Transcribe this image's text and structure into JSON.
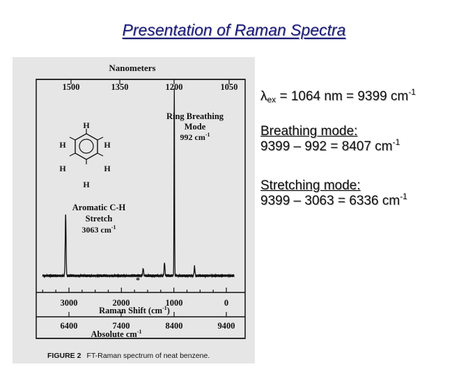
{
  "slide": {
    "title": "Presentation of Raman Spectra"
  },
  "notes": {
    "excitation": {
      "symbol": "λ",
      "subscript": "ex",
      "equation": " = 1064 nm = 9399 cm",
      "exponent": "-1"
    },
    "breathing": {
      "heading": "Breathing mode:",
      "equation": "9399 – 992 = 8407 cm",
      "exponent": "-1"
    },
    "stretching": {
      "heading": "Stretching mode:",
      "equation": "9399 – 3063 = 6336 cm",
      "exponent": "-1"
    }
  },
  "chart_data": {
    "type": "line",
    "top_axis": {
      "label": "Nanometers",
      "ticks": [
        "1500",
        "1350",
        "1200",
        "1050"
      ]
    },
    "x_axis": {
      "label": "Raman Shift (cm",
      "label_exponent": "-1",
      "label_close": ")",
      "ticks": [
        3000,
        2000,
        1000,
        0
      ],
      "tick_labels": [
        "3000",
        "2000",
        "1000",
        "0"
      ],
      "direction": "decreasing-left-to-right"
    },
    "absolute_axis": {
      "label": "Absolute cm",
      "label_exponent": "-1",
      "ticks": [
        "6400",
        "7400",
        "8400",
        "9400"
      ]
    },
    "peaks": [
      {
        "shift": 3063,
        "relative_intensity": 0.33
      },
      {
        "shift": 1585,
        "relative_intensity": 0.04
      },
      {
        "shift": 1178,
        "relative_intensity": 0.07
      },
      {
        "shift": 992,
        "relative_intensity": 1.0
      },
      {
        "shift": 606,
        "relative_intensity": 0.05
      }
    ],
    "annotations": {
      "ring_breathing": [
        "Ring Breathing",
        "Mode",
        "992 cm"
      ],
      "ring_breathing_exponent": "-1",
      "aromatic_stretch": [
        "Aromatic C-H",
        "Stretch",
        "3063 cm"
      ],
      "aromatic_stretch_exponent": "-1",
      "marker": "*"
    },
    "molecule": {
      "atoms": [
        "H",
        "H",
        "H",
        "H",
        "H",
        "H"
      ]
    },
    "caption": {
      "label": "FIGURE 2",
      "text": "FT-Raman spectrum of neat benzene."
    }
  }
}
